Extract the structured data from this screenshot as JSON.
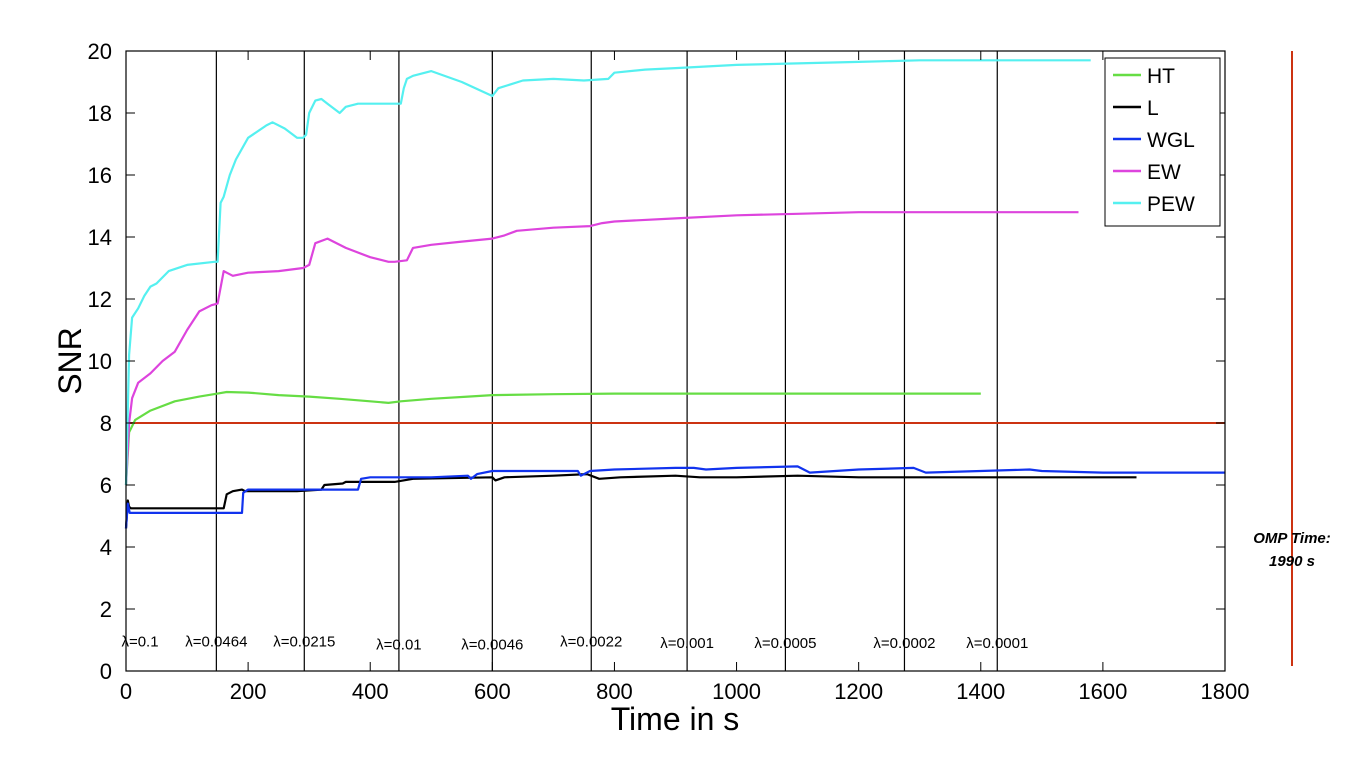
{
  "chart_data": {
    "type": "line",
    "xlabel": "Time in s",
    "ylabel": "SNR",
    "xlim": [
      0,
      1800
    ],
    "ylim": [
      0,
      20
    ],
    "xticks": [
      0,
      200,
      400,
      600,
      800,
      1000,
      1200,
      1400,
      1600,
      1800
    ],
    "yticks": [
      0,
      2,
      4,
      6,
      8,
      10,
      12,
      14,
      16,
      18,
      20
    ],
    "grid": false,
    "legend_position": "top-right",
    "series": [
      {
        "name": "HT",
        "color": "#66dd44",
        "x": [
          0,
          5,
          15,
          40,
          80,
          120,
          150,
          165,
          200,
          250,
          300,
          350,
          400,
          430,
          450,
          500,
          560,
          600,
          700,
          800,
          900,
          1000,
          1200,
          1400
        ],
        "y": [
          6.0,
          7.7,
          8.1,
          8.4,
          8.7,
          8.85,
          8.95,
          9.0,
          8.98,
          8.9,
          8.85,
          8.78,
          8.7,
          8.65,
          8.7,
          8.78,
          8.85,
          8.9,
          8.93,
          8.95,
          8.95,
          8.95,
          8.95,
          8.95
        ]
      },
      {
        "name": "L",
        "color": "#000000",
        "x": [
          0,
          3,
          5,
          8,
          20,
          100,
          160,
          165,
          175,
          190,
          195,
          240,
          280,
          320,
          325,
          355,
          360,
          440,
          470,
          600,
          605,
          620,
          700,
          755,
          775,
          810,
          900,
          940,
          1000,
          1100,
          1200,
          1300,
          1400,
          1500,
          1600,
          1655
        ],
        "y": [
          4.6,
          5.5,
          5.3,
          5.25,
          5.25,
          5.25,
          5.25,
          5.7,
          5.8,
          5.85,
          5.8,
          5.8,
          5.8,
          5.85,
          6.0,
          6.05,
          6.1,
          6.1,
          6.2,
          6.25,
          6.15,
          6.25,
          6.3,
          6.35,
          6.2,
          6.25,
          6.3,
          6.25,
          6.25,
          6.3,
          6.25,
          6.25,
          6.25,
          6.25,
          6.25,
          6.25
        ]
      },
      {
        "name": "WGL",
        "color": "#1133ee",
        "x": [
          0,
          3,
          6,
          10,
          50,
          100,
          150,
          190,
          192,
          200,
          240,
          290,
          330,
          380,
          385,
          400,
          450,
          500,
          560,
          565,
          575,
          600,
          700,
          740,
          745,
          760,
          800,
          900,
          930,
          950,
          1000,
          1100,
          1120,
          1200,
          1290,
          1310,
          1400,
          1480,
          1500,
          1600,
          1700,
          1800
        ],
        "y": [
          4.6,
          5.4,
          5.1,
          5.1,
          5.1,
          5.1,
          5.1,
          5.1,
          5.75,
          5.85,
          5.85,
          5.85,
          5.85,
          5.85,
          6.2,
          6.25,
          6.25,
          6.25,
          6.3,
          6.2,
          6.35,
          6.45,
          6.45,
          6.45,
          6.3,
          6.45,
          6.5,
          6.55,
          6.55,
          6.5,
          6.55,
          6.6,
          6.4,
          6.5,
          6.55,
          6.4,
          6.45,
          6.5,
          6.45,
          6.4,
          6.4,
          6.4
        ]
      },
      {
        "name": "EW",
        "color": "#dd44dd",
        "x": [
          0,
          5,
          10,
          20,
          40,
          60,
          80,
          100,
          120,
          140,
          150,
          160,
          165,
          175,
          200,
          250,
          290,
          300,
          310,
          330,
          360,
          400,
          430,
          440,
          460,
          470,
          500,
          550,
          600,
          620,
          640,
          700,
          760,
          780,
          800,
          900,
          1000,
          1100,
          1200,
          1300,
          1400,
          1500,
          1560
        ],
        "y": [
          6.0,
          8.0,
          8.8,
          9.3,
          9.6,
          10.0,
          10.3,
          11.0,
          11.6,
          11.8,
          11.85,
          12.9,
          12.85,
          12.75,
          12.85,
          12.9,
          13.0,
          13.1,
          13.8,
          13.95,
          13.65,
          13.35,
          13.2,
          13.2,
          13.25,
          13.65,
          13.75,
          13.85,
          13.95,
          14.05,
          14.2,
          14.3,
          14.35,
          14.45,
          14.5,
          14.6,
          14.7,
          14.75,
          14.8,
          14.8,
          14.8,
          14.8,
          14.8
        ]
      },
      {
        "name": "PEW",
        "color": "#55f0f0",
        "x": [
          0,
          5,
          10,
          20,
          30,
          40,
          50,
          70,
          100,
          145,
          150,
          155,
          160,
          170,
          180,
          200,
          230,
          240,
          260,
          280,
          290,
          295,
          300,
          310,
          320,
          330,
          350,
          360,
          380,
          420,
          450,
          455,
          460,
          470,
          500,
          550,
          600,
          610,
          650,
          700,
          750,
          790,
          800,
          850,
          900,
          950,
          1000,
          1100,
          1200,
          1300,
          1400,
          1500,
          1580
        ],
        "y": [
          6.0,
          10.2,
          11.4,
          11.7,
          12.1,
          12.4,
          12.5,
          12.9,
          13.1,
          13.2,
          13.2,
          15.1,
          15.3,
          16.0,
          16.5,
          17.2,
          17.6,
          17.7,
          17.5,
          17.2,
          17.2,
          17.3,
          18.0,
          18.4,
          18.45,
          18.3,
          18.0,
          18.2,
          18.3,
          18.3,
          18.3,
          18.8,
          19.1,
          19.2,
          19.35,
          19.0,
          18.55,
          18.8,
          19.05,
          19.1,
          19.05,
          19.1,
          19.3,
          19.4,
          19.45,
          19.5,
          19.55,
          19.6,
          19.65,
          19.7,
          19.7,
          19.7,
          19.7
        ]
      }
    ],
    "reference_line": {
      "name": "OMP",
      "y": 8,
      "color": "#cc3311"
    },
    "lambda_markers": [
      {
        "x": 0,
        "label": "λ=0.1",
        "label_y": 0.95
      },
      {
        "x": 148,
        "label": "λ=0.0464",
        "label_y": 0.95
      },
      {
        "x": 292,
        "label": "λ=0.0215",
        "label_y": 0.95
      },
      {
        "x": 447,
        "label": "λ=0.01",
        "label_y": 0.85
      },
      {
        "x": 600,
        "label": "λ=0.0046",
        "label_y": 0.85
      },
      {
        "x": 762,
        "label": "λ=0.0022",
        "label_y": 0.95
      },
      {
        "x": 919,
        "label": "λ=0.001",
        "label_y": 0.9
      },
      {
        "x": 1080,
        "label": "λ=0.0005",
        "label_y": 0.9
      },
      {
        "x": 1275,
        "label": "λ=0.0002",
        "label_y": 0.9
      },
      {
        "x": 1427,
        "label": "λ=0.0001",
        "label_y": 0.9
      }
    ],
    "omp_time": {
      "line1": "OMP Time:",
      "line2": "1990 s",
      "color": "#cc3311"
    }
  }
}
